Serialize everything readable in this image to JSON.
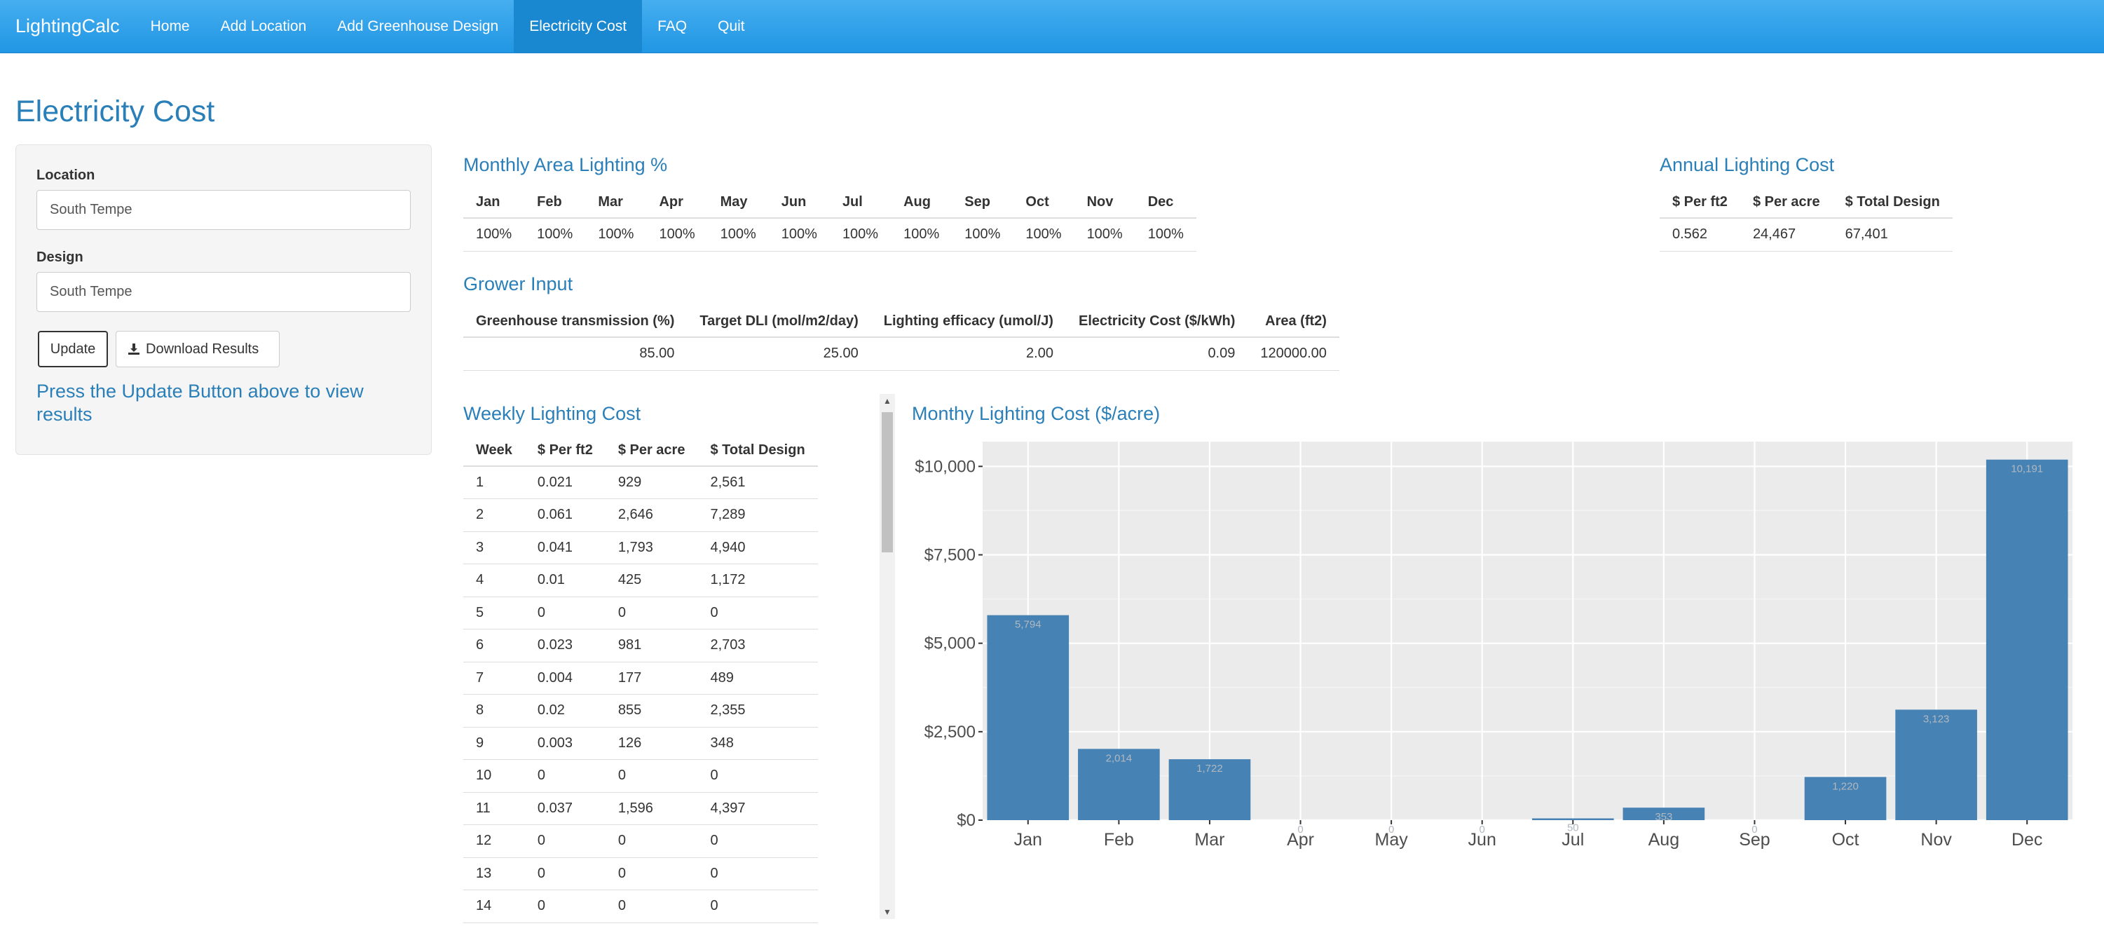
{
  "navbar": {
    "brand": "LightingCalc",
    "items": [
      "Home",
      "Add Location",
      "Add Greenhouse Design",
      "Electricity Cost",
      "FAQ",
      "Quit"
    ],
    "active": "Electricity Cost"
  },
  "page_title": "Electricity Cost",
  "sidebar": {
    "location_label": "Location",
    "location_value": "South Tempe",
    "design_label": "Design",
    "design_value": "South Tempe",
    "update_label": "Update",
    "download_label": "Download Results",
    "hint": "Press the Update Button above to view results"
  },
  "monthly_area": {
    "title": "Monthly Area Lighting %",
    "headers": [
      "Jan",
      "Feb",
      "Mar",
      "Apr",
      "May",
      "Jun",
      "Jul",
      "Aug",
      "Sep",
      "Oct",
      "Nov",
      "Dec"
    ],
    "values": [
      "100%",
      "100%",
      "100%",
      "100%",
      "100%",
      "100%",
      "100%",
      "100%",
      "100%",
      "100%",
      "100%",
      "100%"
    ]
  },
  "annual": {
    "title": "Annual Lighting Cost",
    "headers": [
      "$ Per ft2",
      "$ Per acre",
      "$ Total Design"
    ],
    "values": [
      "0.562",
      "24,467",
      "67,401"
    ]
  },
  "grower": {
    "title": "Grower Input",
    "headers": [
      "Greenhouse transmission (%)",
      "Target DLI (mol/m2/day)",
      "Lighting efficacy (umol/J)",
      "Electricity Cost ($/kWh)",
      "Area (ft2)"
    ],
    "values": [
      "85.00",
      "25.00",
      "2.00",
      "0.09",
      "120000.00"
    ]
  },
  "weekly": {
    "title": "Weekly Lighting Cost",
    "headers": [
      "Week",
      "$ Per ft2",
      "$ Per acre",
      "$ Total Design"
    ],
    "rows": [
      [
        "1",
        "0.021",
        "929",
        "2,561"
      ],
      [
        "2",
        "0.061",
        "2,646",
        "7,289"
      ],
      [
        "3",
        "0.041",
        "1,793",
        "4,940"
      ],
      [
        "4",
        "0.01",
        "425",
        "1,172"
      ],
      [
        "5",
        "0",
        "0",
        "0"
      ],
      [
        "6",
        "0.023",
        "981",
        "2,703"
      ],
      [
        "7",
        "0.004",
        "177",
        "489"
      ],
      [
        "8",
        "0.02",
        "855",
        "2,355"
      ],
      [
        "9",
        "0.003",
        "126",
        "348"
      ],
      [
        "10",
        "0",
        "0",
        "0"
      ],
      [
        "11",
        "0.037",
        "1,596",
        "4,397"
      ],
      [
        "12",
        "0",
        "0",
        "0"
      ],
      [
        "13",
        "0",
        "0",
        "0"
      ],
      [
        "14",
        "0",
        "0",
        "0"
      ]
    ]
  },
  "chart_data": {
    "type": "bar",
    "title": "Monthy Lighting Cost ($/acre)",
    "categories": [
      "Jan",
      "Feb",
      "Mar",
      "Apr",
      "May",
      "Jun",
      "Jul",
      "Aug",
      "Sep",
      "Oct",
      "Nov",
      "Dec"
    ],
    "values": [
      5794,
      2014,
      1722,
      0,
      0,
      0,
      50,
      353,
      0,
      1220,
      3123,
      10191
    ],
    "data_labels": [
      "5,794",
      "2,014",
      "1,722",
      "0",
      "0",
      "0",
      "50",
      "353",
      "0",
      "1,220",
      "3,123",
      "10,191"
    ],
    "ylim": [
      0,
      10700
    ],
    "yticks": [
      0,
      2500,
      5000,
      7500,
      10000
    ],
    "ytick_labels": [
      "$0",
      "$2,500",
      "$5,000",
      "$7,500",
      "$10,000"
    ],
    "grid": true,
    "bar_color": "#4682b4",
    "panel_color": "#ebebeb"
  },
  "colors": {
    "accent": "#2a7fb8",
    "navbar": "#2196e3"
  }
}
